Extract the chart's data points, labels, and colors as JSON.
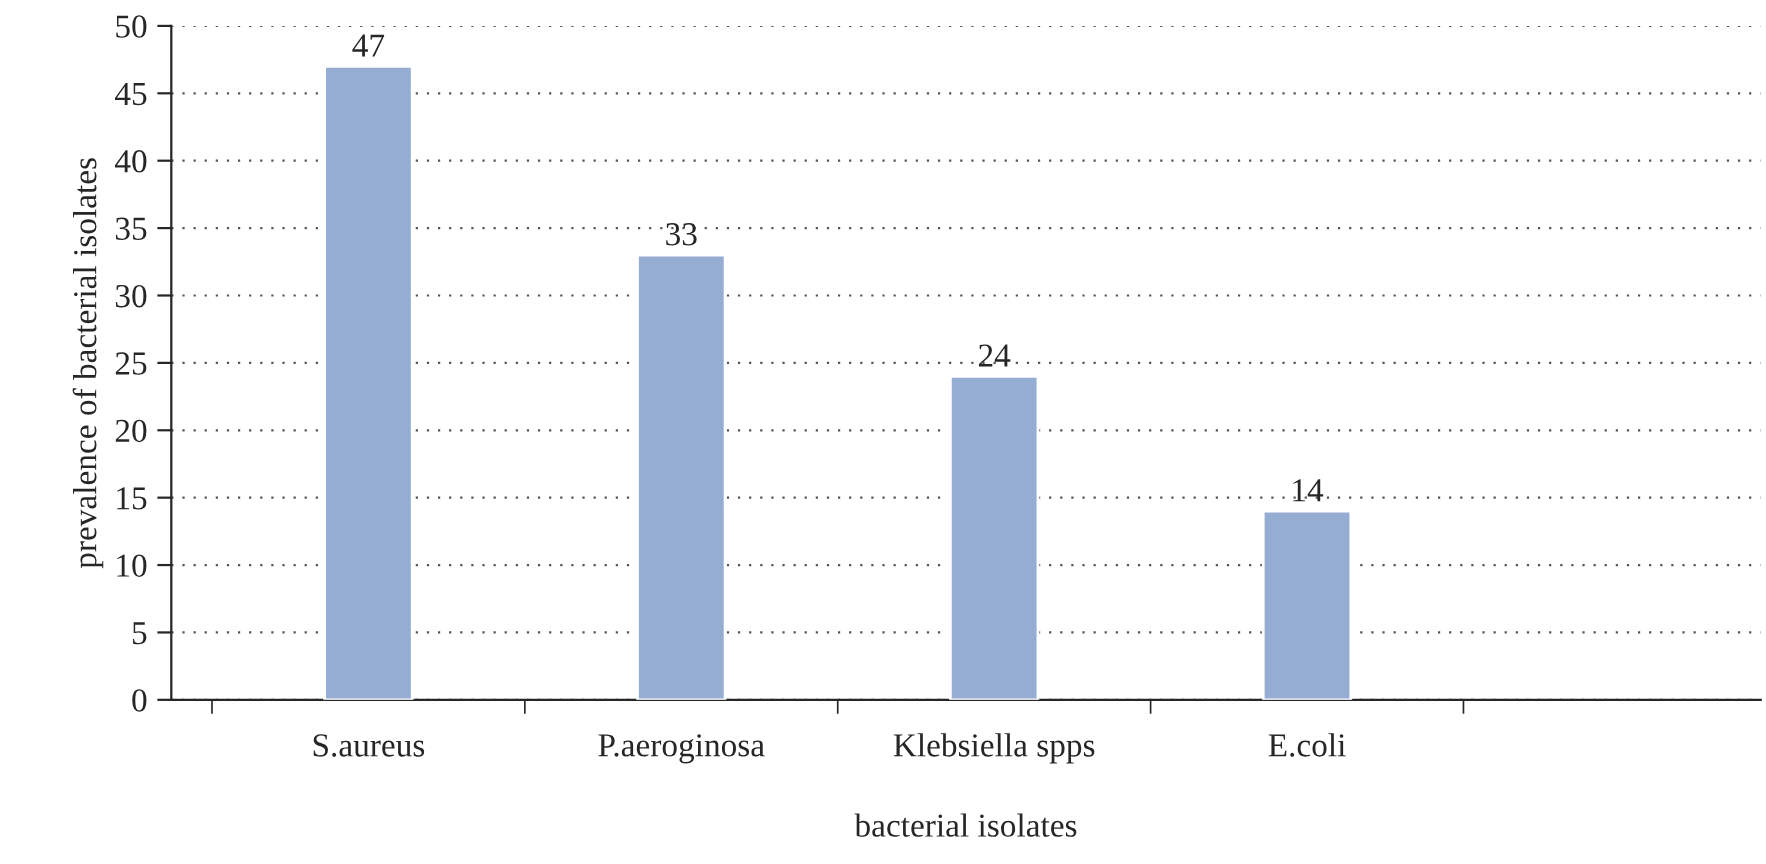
{
  "chart_data": {
    "type": "bar",
    "xlabel": "bacterial isolates",
    "ylabel": "prevalence of bacterial isolates",
    "categories": [
      "S.aureus",
      "P.aeroginosa",
      "Klebsiella spps",
      "E.coli",
      null
    ],
    "values": [
      47,
      33,
      24,
      14,
      null
    ],
    "color": "#95acd3",
    "ylim": [
      0,
      50
    ],
    "yticks": [
      0,
      5,
      10,
      15,
      20,
      25,
      30,
      35,
      40,
      45,
      50
    ],
    "grid": "y",
    "data_labels": true
  }
}
